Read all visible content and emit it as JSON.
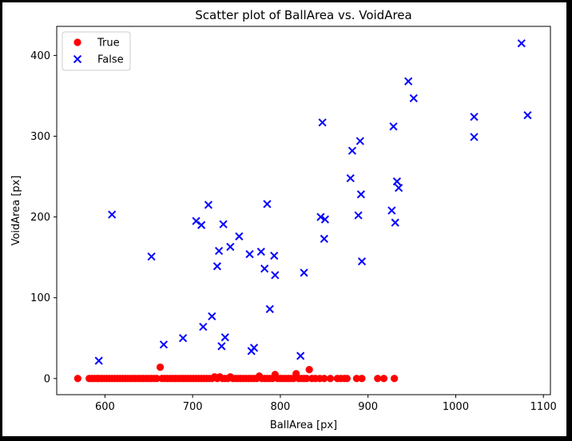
{
  "chart_data": {
    "type": "scatter",
    "title": "Scatter plot of BallArea vs. VoidArea",
    "xlabel": "BallArea [px]",
    "ylabel": "VoidArea [px]",
    "xlim": [
      545,
      1108
    ],
    "ylim": [
      -20,
      436
    ],
    "xticks": [
      600,
      700,
      800,
      900,
      1000,
      1100
    ],
    "yticks": [
      0,
      100,
      200,
      300,
      400
    ],
    "xtick_labels": [
      "600",
      "700",
      "800",
      "900",
      "1000",
      "1100"
    ],
    "ytick_labels": [
      "0",
      "100",
      "200",
      "300",
      "400"
    ],
    "grid": false,
    "legend_position": "top-left",
    "series": [
      {
        "name": "True",
        "marker": "circle",
        "color": "#ff0000",
        "points": [
          [
            569,
            0
          ],
          [
            582,
            0
          ],
          [
            585,
            0
          ],
          [
            588,
            0
          ],
          [
            591,
            0
          ],
          [
            593,
            0
          ],
          [
            596,
            0
          ],
          [
            599,
            0
          ],
          [
            602,
            0
          ],
          [
            605,
            0
          ],
          [
            608,
            0
          ],
          [
            611,
            0
          ],
          [
            614,
            0
          ],
          [
            617,
            0
          ],
          [
            620,
            0
          ],
          [
            623,
            0
          ],
          [
            626,
            0
          ],
          [
            629,
            0
          ],
          [
            632,
            0
          ],
          [
            635,
            0
          ],
          [
            638,
            0
          ],
          [
            641,
            0
          ],
          [
            644,
            0
          ],
          [
            647,
            0
          ],
          [
            650,
            0
          ],
          [
            653,
            0
          ],
          [
            656,
            0
          ],
          [
            659,
            0
          ],
          [
            663,
            14
          ],
          [
            665,
            0
          ],
          [
            668,
            0
          ],
          [
            671,
            0
          ],
          [
            674,
            0
          ],
          [
            677,
            0
          ],
          [
            680,
            0
          ],
          [
            683,
            0
          ],
          [
            686,
            0
          ],
          [
            689,
            0
          ],
          [
            692,
            0
          ],
          [
            695,
            0
          ],
          [
            698,
            0
          ],
          [
            701,
            0
          ],
          [
            704,
            0
          ],
          [
            707,
            0
          ],
          [
            710,
            0
          ],
          [
            713,
            0
          ],
          [
            716,
            0
          ],
          [
            719,
            0
          ],
          [
            722,
            0
          ],
          [
            725,
            2
          ],
          [
            728,
            0
          ],
          [
            731,
            2
          ],
          [
            734,
            0
          ],
          [
            737,
            0
          ],
          [
            740,
            0
          ],
          [
            743,
            2
          ],
          [
            746,
            0
          ],
          [
            749,
            0
          ],
          [
            752,
            0
          ],
          [
            755,
            0
          ],
          [
            758,
            0
          ],
          [
            761,
            0
          ],
          [
            764,
            0
          ],
          [
            767,
            0
          ],
          [
            770,
            0
          ],
          [
            773,
            0
          ],
          [
            776,
            3
          ],
          [
            779,
            0
          ],
          [
            782,
            0
          ],
          [
            785,
            0
          ],
          [
            788,
            0
          ],
          [
            791,
            0
          ],
          [
            794,
            5
          ],
          [
            797,
            0
          ],
          [
            800,
            0
          ],
          [
            803,
            0
          ],
          [
            806,
            0
          ],
          [
            809,
            0
          ],
          [
            812,
            0
          ],
          [
            815,
            0
          ],
          [
            818,
            6
          ],
          [
            821,
            0
          ],
          [
            824,
            0
          ],
          [
            827,
            0
          ],
          [
            830,
            0
          ],
          [
            833,
            11
          ],
          [
            836,
            0
          ],
          [
            840,
            0
          ],
          [
            845,
            0
          ],
          [
            850,
            0
          ],
          [
            857,
            0
          ],
          [
            865,
            0
          ],
          [
            869,
            0
          ],
          [
            873,
            0
          ],
          [
            876,
            0
          ],
          [
            887,
            0
          ],
          [
            893,
            0
          ],
          [
            911,
            0
          ],
          [
            918,
            0
          ],
          [
            930,
            0
          ]
        ]
      },
      {
        "name": "False",
        "marker": "x",
        "color": "#0000ff",
        "points": [
          [
            593,
            22
          ],
          [
            608,
            203
          ],
          [
            653,
            151
          ],
          [
            667,
            42
          ],
          [
            689,
            50
          ],
          [
            704,
            195
          ],
          [
            710,
            190
          ],
          [
            712,
            64
          ],
          [
            718,
            215
          ],
          [
            722,
            77
          ],
          [
            728,
            139
          ],
          [
            730,
            158
          ],
          [
            733,
            40
          ],
          [
            735,
            191
          ],
          [
            737,
            51
          ],
          [
            743,
            163
          ],
          [
            753,
            176
          ],
          [
            765,
            154
          ],
          [
            767,
            34
          ],
          [
            770,
            38
          ],
          [
            778,
            157
          ],
          [
            782,
            136
          ],
          [
            785,
            216
          ],
          [
            788,
            86
          ],
          [
            793,
            152
          ],
          [
            794,
            128
          ],
          [
            823,
            28
          ],
          [
            827,
            131
          ],
          [
            846,
            200
          ],
          [
            848,
            317
          ],
          [
            850,
            173
          ],
          [
            851,
            197
          ],
          [
            880,
            248
          ],
          [
            882,
            282
          ],
          [
            889,
            202
          ],
          [
            891,
            294
          ],
          [
            892,
            228
          ],
          [
            893,
            145
          ],
          [
            927,
            208
          ],
          [
            929,
            312
          ],
          [
            931,
            193
          ],
          [
            933,
            244
          ],
          [
            935,
            236
          ],
          [
            946,
            368
          ],
          [
            952,
            347
          ],
          [
            1021,
            324
          ],
          [
            1021,
            299
          ],
          [
            1075,
            415
          ],
          [
            1082,
            326
          ]
        ]
      }
    ]
  }
}
